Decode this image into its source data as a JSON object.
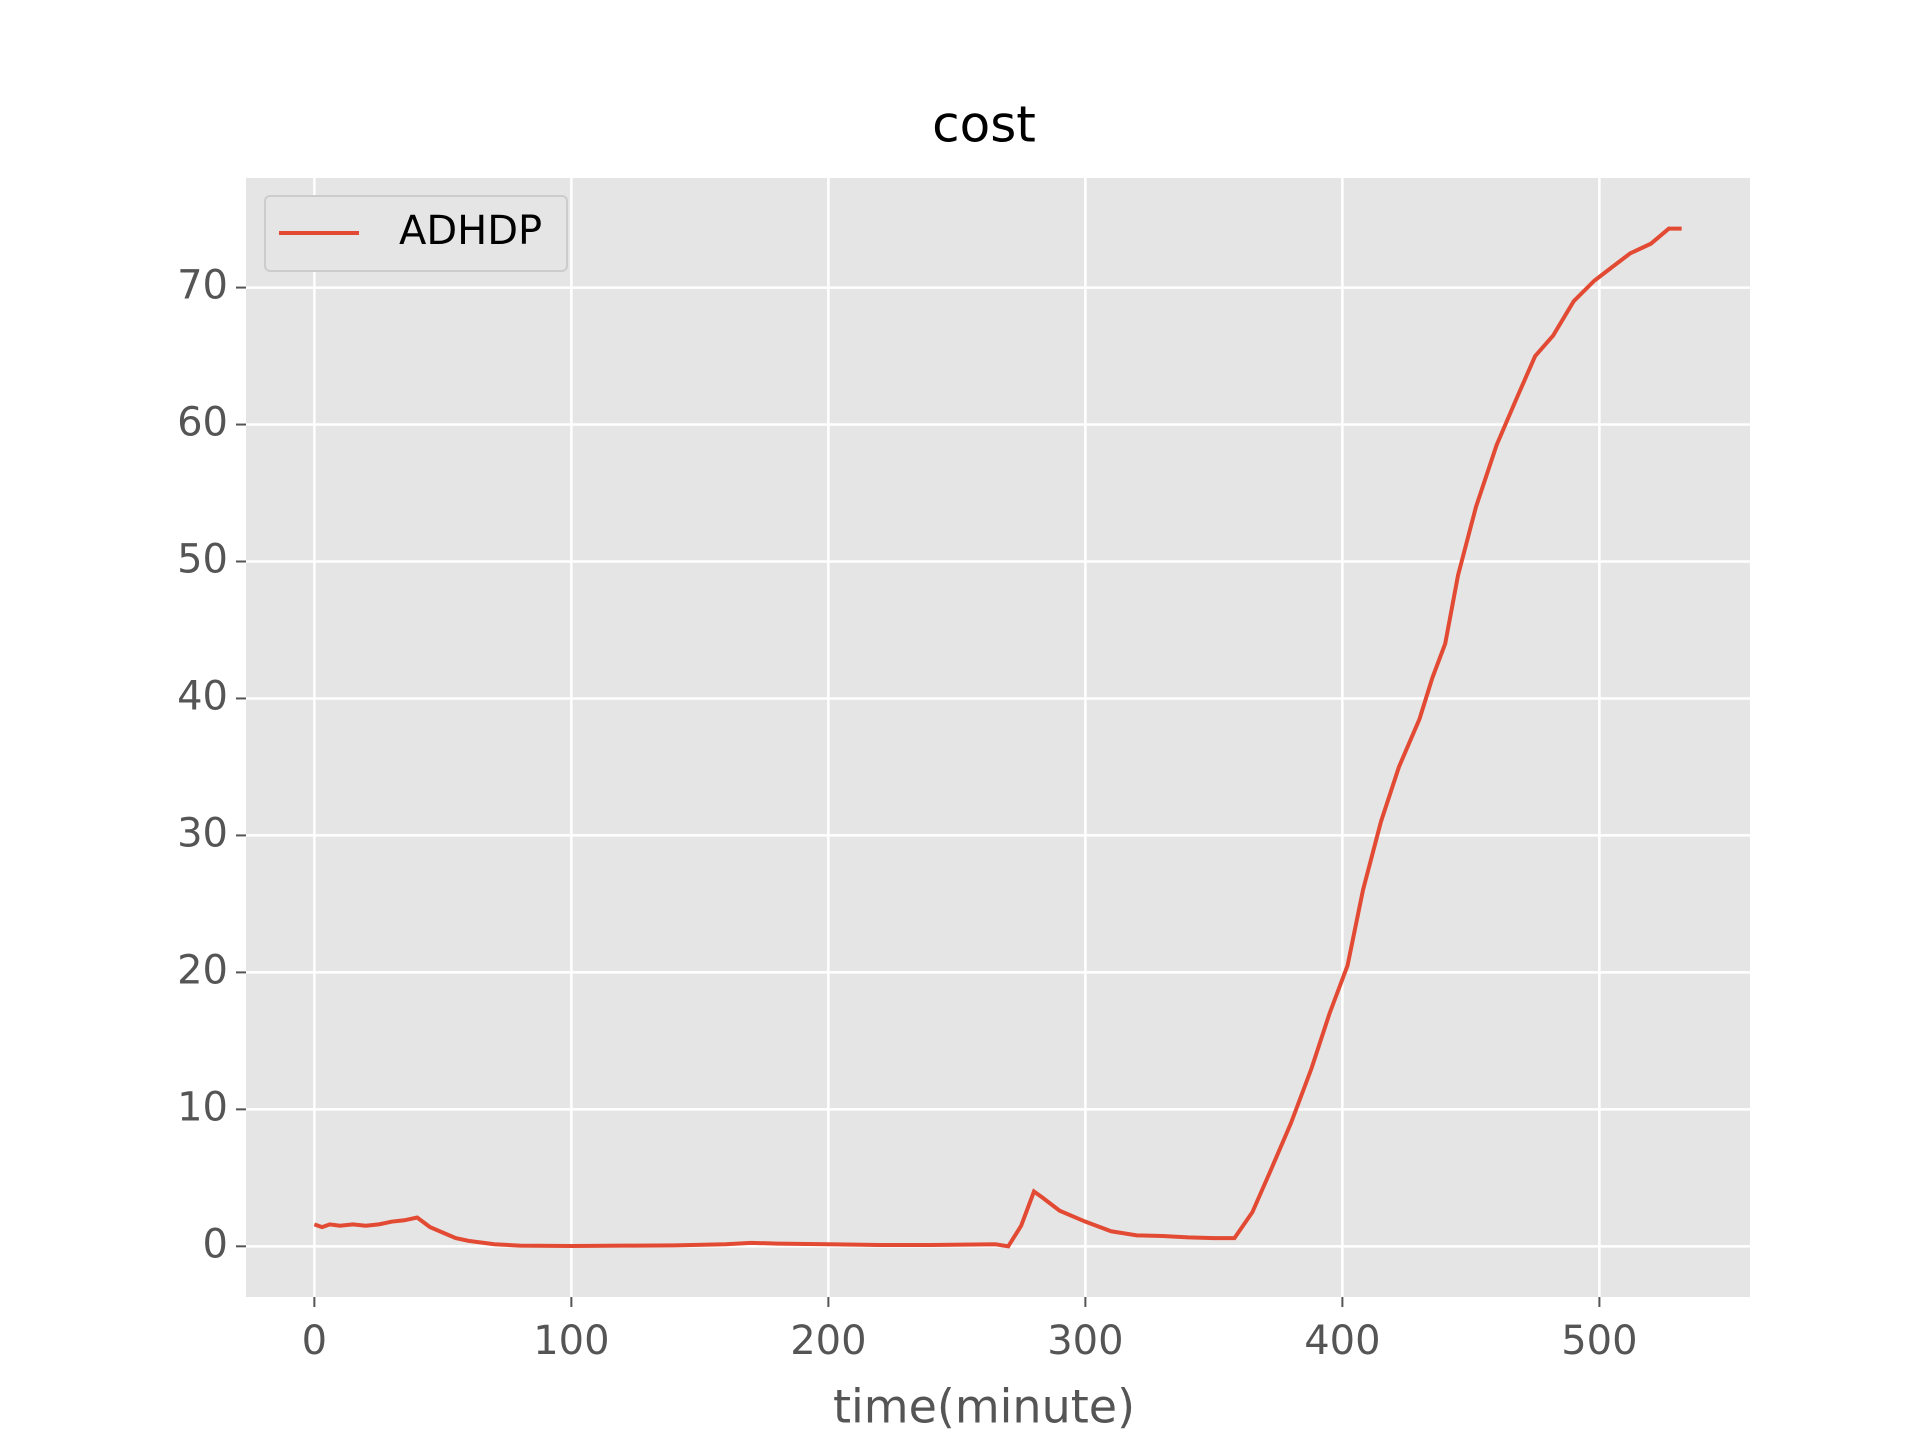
{
  "chart_data": {
    "type": "line",
    "title": "cost",
    "xlabel": "time(minute)",
    "x": [
      0,
      3,
      6,
      10,
      15,
      20,
      25,
      30,
      35,
      40,
      45,
      50,
      55,
      60,
      70,
      80,
      100,
      120,
      140,
      160,
      170,
      180,
      200,
      220,
      240,
      265,
      270,
      275,
      280,
      283,
      290,
      300,
      310,
      320,
      330,
      340,
      350,
      358,
      365,
      372,
      380,
      388,
      395,
      402,
      408,
      415,
      422,
      430,
      435,
      440,
      445,
      452,
      460,
      468,
      475,
      482,
      490,
      498,
      505,
      512,
      520,
      527,
      532
    ],
    "series": [
      {
        "name": "ADHDP",
        "color": "#E24A33",
        "values": [
          1.6,
          1.4,
          1.6,
          1.5,
          1.6,
          1.5,
          1.6,
          1.8,
          1.9,
          2.1,
          1.4,
          1.0,
          0.6,
          0.4,
          0.15,
          0.05,
          0.02,
          0.05,
          0.07,
          0.15,
          0.25,
          0.2,
          0.15,
          0.1,
          0.1,
          0.15,
          0.0,
          1.5,
          4.0,
          3.6,
          2.6,
          1.8,
          1.1,
          0.8,
          0.75,
          0.65,
          0.6,
          0.6,
          2.5,
          5.5,
          9.0,
          13,
          17,
          20.5,
          26,
          31,
          35,
          38.5,
          41.5,
          44,
          49,
          54,
          58.5,
          62,
          65,
          66.5,
          69.0,
          70.5,
          71.5,
          72.5,
          73.2,
          74.3,
          74.3
        ]
      }
    ],
    "xlim": [
      -26.6,
      558.6
    ],
    "ylim": [
      -3.7,
      78.0
    ],
    "xticks": [
      0,
      100,
      200,
      300,
      400,
      500
    ],
    "yticks": [
      0,
      10,
      20,
      30,
      40,
      50,
      60,
      70
    ],
    "grid": true,
    "legend": "upper left"
  }
}
